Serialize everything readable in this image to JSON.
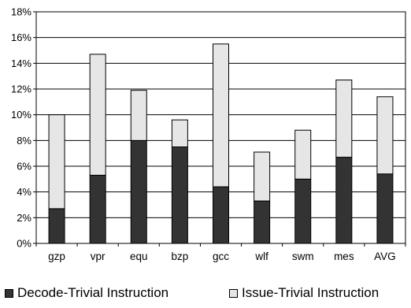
{
  "chart_data": {
    "type": "bar",
    "stacked": true,
    "categories": [
      "gzp",
      "vpr",
      "equ",
      "bzp",
      "gcc",
      "wlf",
      "swm",
      "mes",
      "AVG"
    ],
    "series": [
      {
        "name": "Decode-Trivial Instruction",
        "color": "#333333",
        "values": [
          2.7,
          5.3,
          8.0,
          7.5,
          4.4,
          3.3,
          5.0,
          6.7,
          5.4
        ]
      },
      {
        "name": "Issue-Trivial Instruction",
        "color": "#e6e6e6",
        "values": [
          7.3,
          9.4,
          3.9,
          2.1,
          11.1,
          3.8,
          3.8,
          6.0,
          6.0
        ]
      }
    ],
    "yticks": [
      "0%",
      "2%",
      "4%",
      "6%",
      "8%",
      "10%",
      "12%",
      "14%",
      "16%",
      "18%"
    ],
    "ylim": [
      0,
      18
    ],
    "y_step": 2,
    "grid": true,
    "legend": "bottom"
  }
}
